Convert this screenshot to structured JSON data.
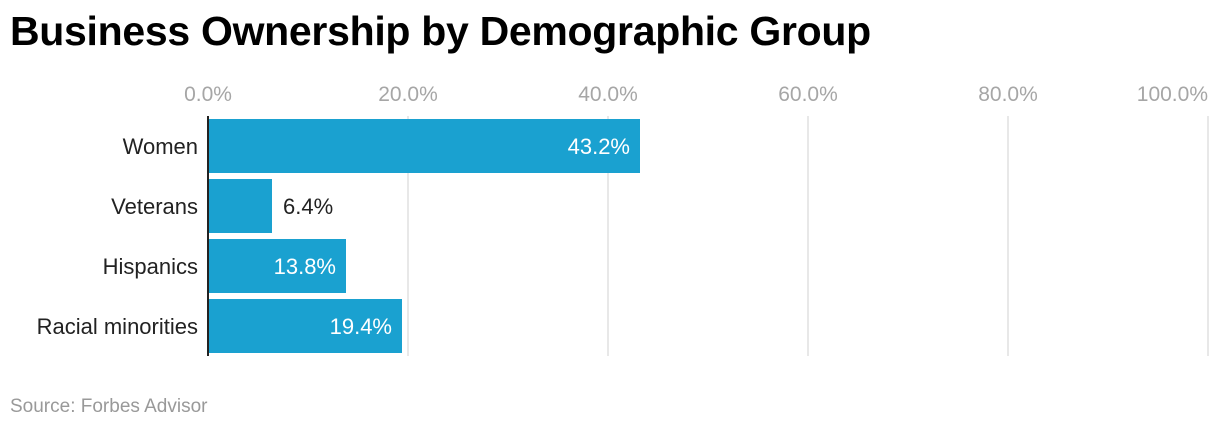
{
  "chart_data": {
    "type": "bar",
    "orientation": "horizontal",
    "title": "Business Ownership by Demographic Group",
    "source": "Source: Forbes Advisor",
    "categories": [
      "Women",
      "Veterans",
      "Hispanics",
      "Racial minorities"
    ],
    "values": [
      43.2,
      6.4,
      13.8,
      19.4
    ],
    "value_labels": [
      "43.2%",
      "6.4%",
      "13.8%",
      "19.4%"
    ],
    "x_ticks": [
      "0.0%",
      "20.0%",
      "40.0%",
      "60.0%",
      "80.0%",
      "100.0%"
    ],
    "xlim": [
      0,
      100
    ],
    "xlabel": "",
    "ylabel": "",
    "axis_position": "top",
    "grid": true,
    "bar_color": "#1aa1d0",
    "grid_color": "#e0e0e0"
  }
}
